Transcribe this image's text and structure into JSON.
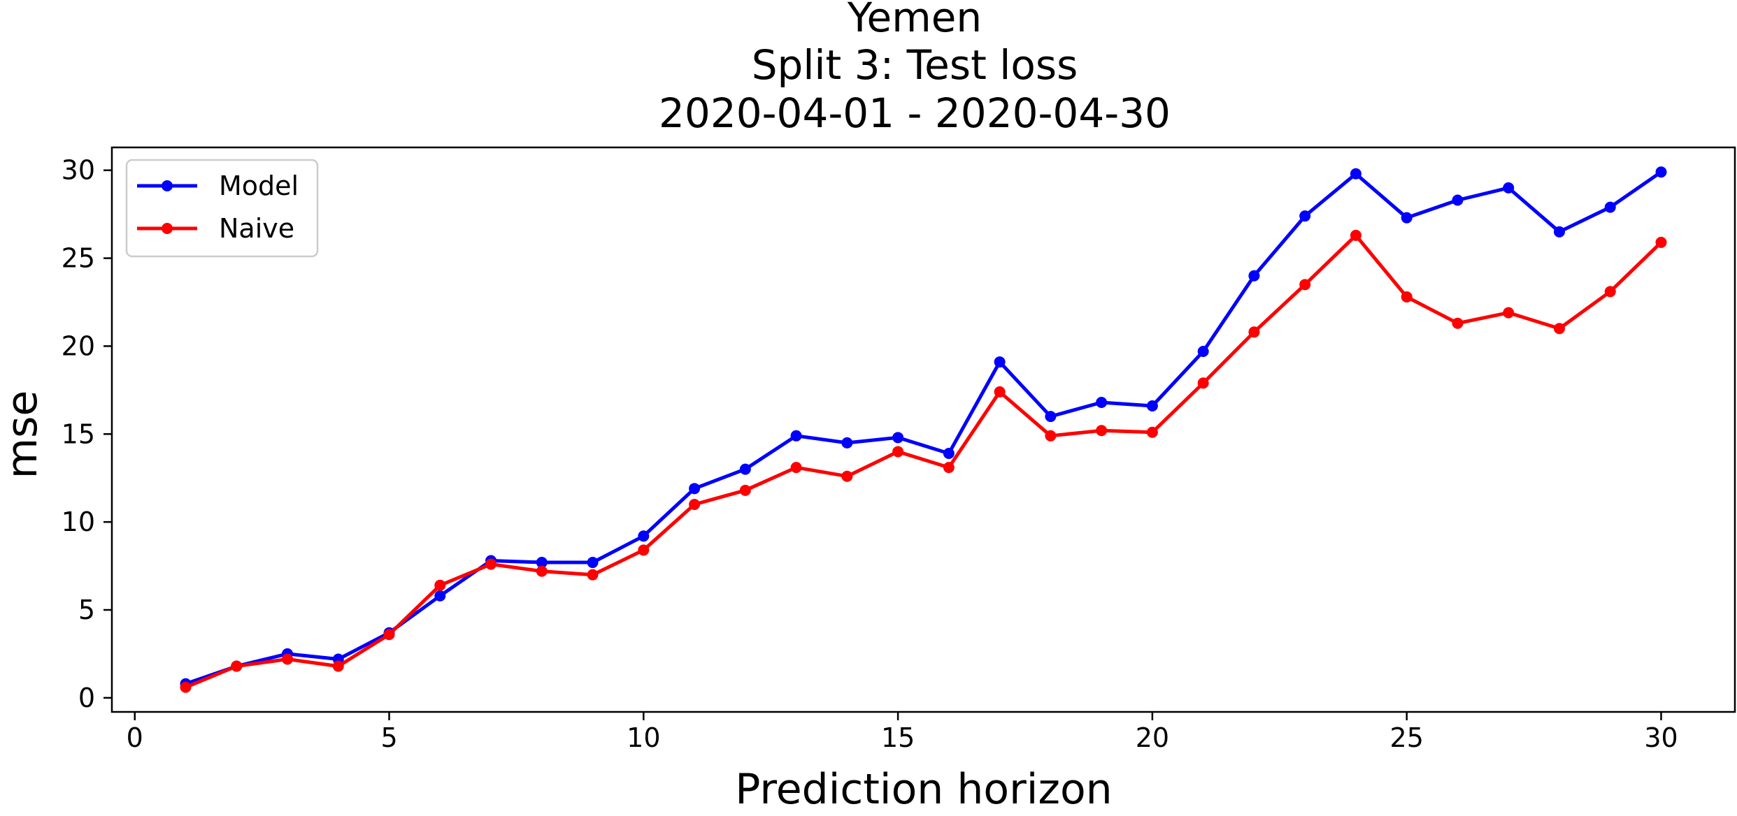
{
  "chart_data": {
    "type": "line",
    "title": [
      "Yemen",
      "Split 3: Test loss",
      "2020-04-01 - 2020-04-30"
    ],
    "xlabel": "Prediction horizon",
    "ylabel": "mse",
    "xlim": [
      -0.45,
      31.45
    ],
    "ylim": [
      -0.8,
      31.3
    ],
    "xticks": [
      0,
      5,
      10,
      15,
      20,
      25,
      30
    ],
    "yticks": [
      0,
      5,
      10,
      15,
      20,
      25,
      30
    ],
    "grid": false,
    "legend_placement": "top-left",
    "x": [
      1,
      2,
      3,
      4,
      5,
      6,
      7,
      8,
      9,
      10,
      11,
      12,
      13,
      14,
      15,
      16,
      17,
      18,
      19,
      20,
      21,
      22,
      23,
      24,
      25,
      26,
      27,
      28,
      29,
      30
    ],
    "series": [
      {
        "name": "Model",
        "color": "#0000ff",
        "values": [
          0.8,
          1.8,
          2.5,
          2.2,
          3.7,
          5.8,
          7.8,
          7.7,
          7.7,
          9.2,
          11.9,
          13.0,
          14.9,
          14.5,
          14.8,
          13.9,
          19.1,
          16.0,
          16.8,
          16.6,
          19.7,
          24.0,
          27.4,
          29.8,
          27.3,
          28.3,
          29.0,
          26.5,
          27.9,
          29.9
        ]
      },
      {
        "name": "Naive",
        "color": "#ff0000",
        "values": [
          0.6,
          1.8,
          2.2,
          1.8,
          3.6,
          6.4,
          7.6,
          7.2,
          7.0,
          8.4,
          11.0,
          11.8,
          13.1,
          12.6,
          14.0,
          13.1,
          17.4,
          14.9,
          15.2,
          15.1,
          17.9,
          20.8,
          23.5,
          26.3,
          22.8,
          21.3,
          21.9,
          21.0,
          23.1,
          25.9
        ]
      }
    ]
  }
}
